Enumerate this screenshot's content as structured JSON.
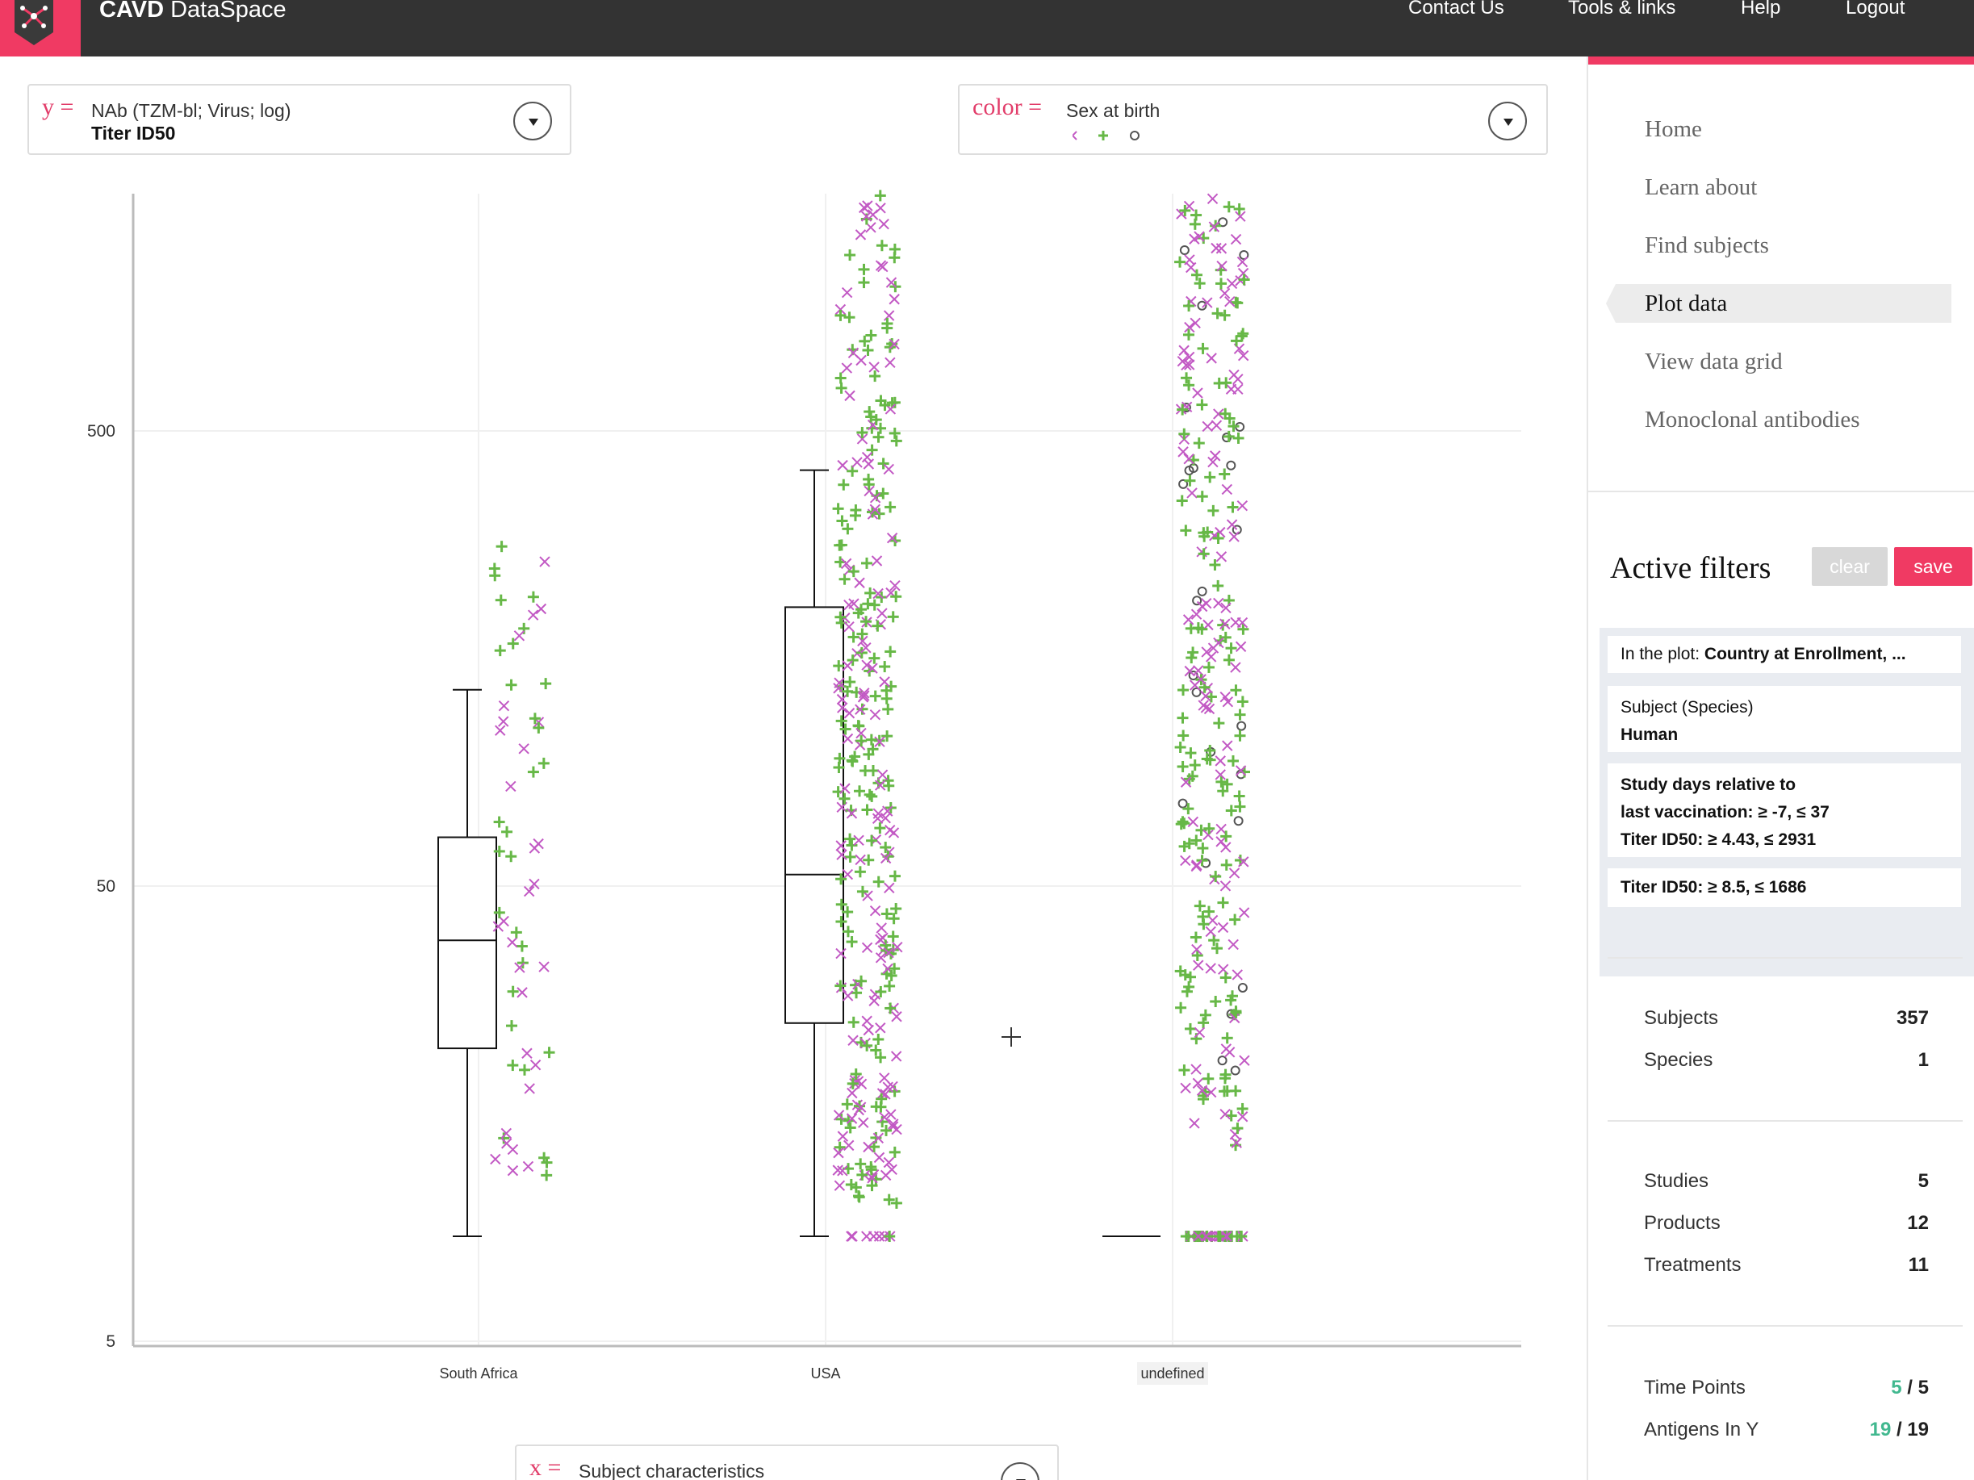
{
  "header": {
    "app_title_strong": "CAVD",
    "app_title_rest": "DataSpace",
    "nav": [
      "Contact Us",
      "Tools & links",
      "Help",
      "Logout"
    ],
    "brand_color": "#f03a63",
    "bar_color": "#333333"
  },
  "y_selector": {
    "prefix": "y =",
    "line1": "NAb (TZM-bl; Virus; log)",
    "line2": "Titer ID50"
  },
  "color_selector": {
    "prefix": "color =",
    "line1": "Sex at birth",
    "legend_icons": [
      "x-cross",
      "plus",
      "circle"
    ],
    "legend_colors": [
      "#c259c4",
      "#67b847",
      "#555555"
    ]
  },
  "x_selector": {
    "prefix": "x =",
    "line1": "Subject characteristics"
  },
  "chart_data": {
    "type": "box",
    "y_scale": "log",
    "ylim": [
      4,
      1680
    ],
    "y_ticks": [
      "500",
      "50",
      "5"
    ],
    "y_tick_values": [
      500,
      50,
      5
    ],
    "categories": [
      "South Africa",
      "USA",
      "undefined"
    ],
    "boxes": [
      {
        "category": "South Africa",
        "min": 8.5,
        "q1": 22,
        "median": 38,
        "q3": 64,
        "max": 135
      },
      {
        "category": "USA",
        "min": 8.5,
        "q1": 25,
        "median": 53,
        "q3": 205,
        "max": 410
      },
      {
        "category": "undefined",
        "min": 8.5,
        "q1": 8.5,
        "median": 8.5,
        "q3": 8.5,
        "max": 8.5
      }
    ],
    "point_groups": [
      {
        "category": "South Africa",
        "count": 60
      },
      {
        "category": "USA",
        "count": 340
      },
      {
        "category": "undefined",
        "count": 300
      }
    ],
    "series_colors": {
      "cross": "#c259c4",
      "plus": "#67b847",
      "circle": "#555555"
    },
    "grid": true,
    "legend": "color selector, top"
  },
  "sidebar": {
    "menu": [
      "Home",
      "Learn about",
      "Find subjects",
      "Plot data",
      "View data grid",
      "Monoclonal antibodies"
    ],
    "active_menu": "Plot data",
    "filters_title": "Active filters",
    "clear_label": "clear",
    "save_label": "save",
    "filters": [
      {
        "plain": "In the plot:",
        "bold": "Country at Enrollment, ..."
      },
      {
        "plain": "Subject (Species)",
        "bold": "Human"
      },
      {
        "bold_lines": [
          "Study days relative to",
          "last vaccination: ≥ -7, ≤ 37",
          "Titer ID50: ≥ 4.43, ≤ 2931"
        ]
      },
      {
        "bold_lines": [
          "Titer ID50: ≥ 8.5, ≤ 1686"
        ]
      }
    ],
    "stats": [
      {
        "label": "Subjects",
        "value": "357"
      },
      {
        "label": "Species",
        "value": "1"
      },
      {
        "label": "Studies",
        "value": "5"
      },
      {
        "label": "Products",
        "value": "12"
      },
      {
        "label": "Treatments",
        "value": "11"
      },
      {
        "label": "Time Points",
        "value_hl": "5",
        "value_rest": " / 5"
      },
      {
        "label": "Antigens In Y",
        "value_hl": "19",
        "value_rest": " / 19"
      }
    ]
  }
}
